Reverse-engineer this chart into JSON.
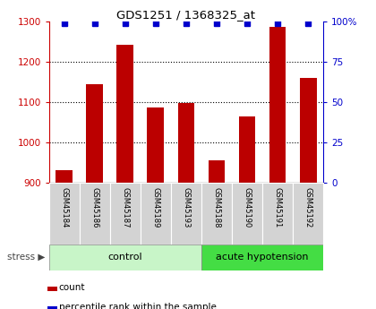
{
  "title": "GDS1251 / 1368325_at",
  "samples": [
    "GSM45184",
    "GSM45186",
    "GSM45187",
    "GSM45189",
    "GSM45193",
    "GSM45188",
    "GSM45190",
    "GSM45191",
    "GSM45192"
  ],
  "counts": [
    930,
    1145,
    1242,
    1087,
    1098,
    955,
    1065,
    1288,
    1160
  ],
  "percentile_ranks": [
    99,
    99,
    99,
    99,
    99,
    99,
    99,
    99,
    99
  ],
  "groups": [
    "control",
    "control",
    "control",
    "control",
    "control",
    "acute hypotension",
    "acute hypotension",
    "acute hypotension",
    "acute hypotension"
  ],
  "group_colors": {
    "control": "#c8f5c8",
    "acute hypotension": "#44dd44"
  },
  "bar_color": "#bb0000",
  "dot_color": "#0000cc",
  "ylim_left": [
    900,
    1300
  ],
  "ylim_right": [
    0,
    100
  ],
  "yticks_left": [
    900,
    1000,
    1100,
    1200,
    1300
  ],
  "yticks_right": [
    0,
    25,
    50,
    75,
    100
  ],
  "background_color": "#ffffff",
  "stress_label": "stress",
  "legend_count_label": "count",
  "legend_percentile_label": "percentile rank within the sample"
}
